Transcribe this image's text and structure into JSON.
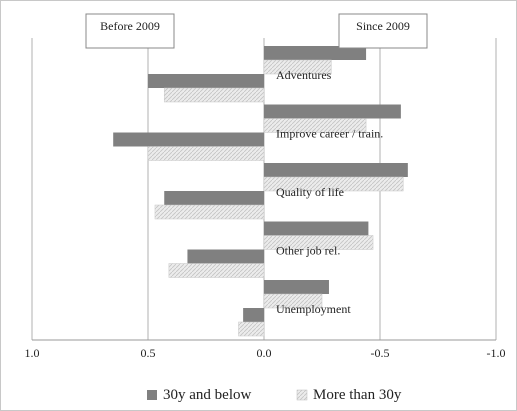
{
  "chart_data": {
    "type": "bar",
    "orientation": "horizontal",
    "title": "",
    "xlabel": "",
    "ylabel": "",
    "region_labels": {
      "left": "Before 2009",
      "right": "Since 2009"
    },
    "categories": [
      "Adventures",
      "Improve career / train.",
      "Quality of life",
      "Other job rel.",
      "Unemployment"
    ],
    "x_ticks": [
      "1.0",
      "0.5",
      "0.0",
      "-0.5",
      "-1.0"
    ],
    "x_tick_values": [
      1.0,
      0.5,
      0.0,
      -0.5,
      -1.0
    ],
    "xlim": [
      1.0,
      -1.0
    ],
    "grid": true,
    "legend_position": "bottom",
    "series": [
      {
        "name": "30y and below",
        "color": "#808080",
        "pattern": "solid",
        "values": {
          "before_2009": [
            0.5,
            0.65,
            0.43,
            0.33,
            0.09
          ],
          "since_2009": [
            -0.44,
            -0.59,
            -0.62,
            -0.45,
            -0.28
          ]
        }
      },
      {
        "name": "More than 30y",
        "color": "#e6e6e6",
        "pattern": "hatched",
        "values": {
          "before_2009": [
            0.43,
            0.5,
            0.47,
            0.41,
            0.11
          ],
          "since_2009": [
            -0.29,
            -0.44,
            -0.6,
            -0.47,
            -0.25
          ]
        }
      }
    ]
  }
}
